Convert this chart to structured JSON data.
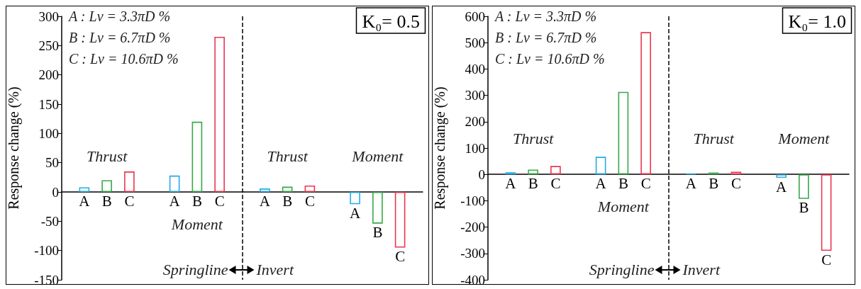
{
  "chart_data": [
    {
      "type": "bar",
      "title": "K₀= 0.5",
      "ylabel": "Response change (%)",
      "categories": [
        null,
        null,
        null,
        null
      ],
      "series": [
        {
          "name": "A",
          "color": "#29abe2",
          "values": [
            8,
            28,
            6,
            -21
          ]
        },
        {
          "name": "B",
          "color": "#39a84a",
          "values": [
            20,
            120,
            9,
            -54
          ]
        },
        {
          "name": "C",
          "color": "#e8384f",
          "values": [
            35,
            265,
            11,
            -95
          ]
        }
      ],
      "ylim": [
        -150,
        300
      ],
      "yticks": [
        -150,
        -100,
        -50,
        0,
        50,
        100,
        150,
        200,
        250,
        300
      ],
      "annotations": [
        "A : Lv = 3.3πD %",
        "B : Lv = 6.7πD %",
        "C : Lv = 10.6πD %",
        "Thrust",
        "Moment",
        "Thrust",
        "Moment",
        "Springline",
        "Invert"
      ]
    },
    {
      "type": "bar",
      "title": "K₀= 1.0",
      "ylabel": "Response change (%)",
      "categories": [
        null,
        null,
        null,
        null
      ],
      "series": [
        {
          "name": "A",
          "color": "#29abe2",
          "values": [
            8,
            67,
            4,
            -13
          ]
        },
        {
          "name": "B",
          "color": "#39a84a",
          "values": [
            18,
            313,
            7,
            -93
          ]
        },
        {
          "name": "C",
          "color": "#e8384f",
          "values": [
            32,
            540,
            10,
            -290
          ]
        }
      ],
      "ylim": [
        -400,
        600
      ],
      "yticks": [
        -400,
        -300,
        -200,
        -100,
        0,
        100,
        200,
        300,
        400,
        500,
        600
      ],
      "annotations": [
        "A : Lv = 3.3πD %",
        "B : Lv = 6.7πD %",
        "C : Lv = 10.6πD %",
        "Thrust",
        "Moment",
        "Thrust",
        "Moment",
        "Springline",
        "Invert"
      ]
    }
  ]
}
